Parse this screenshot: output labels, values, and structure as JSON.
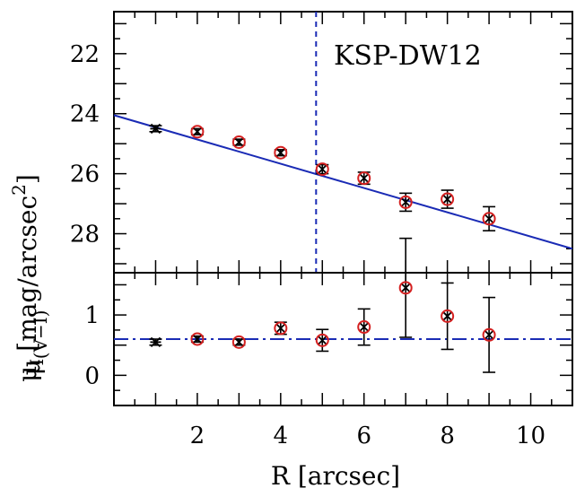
{
  "chart_data": [
    {
      "type": "scatter",
      "panel": "top",
      "annotation": "KSP-DW12",
      "xlim": [
        0,
        11
      ],
      "ylim": [
        29.3,
        20.6
      ],
      "y_inverted": true,
      "yticks": [
        22,
        24,
        26,
        28
      ],
      "ylabel_symbol": "μ",
      "ylabel_subscript": "I",
      "ylabel_units": "[mag/arcsec",
      "ylabel_units_sup": "2",
      "ylabel_units_end": "]",
      "points": [
        {
          "x": 1,
          "y": 24.5,
          "err": 0.1,
          "circled": false
        },
        {
          "x": 2,
          "y": 24.6,
          "err": 0.1,
          "circled": true
        },
        {
          "x": 3,
          "y": 24.95,
          "err": 0.1,
          "circled": true
        },
        {
          "x": 4,
          "y": 25.3,
          "err": 0.1,
          "circled": true
        },
        {
          "x": 5,
          "y": 25.85,
          "err": 0.15,
          "circled": true
        },
        {
          "x": 6,
          "y": 26.15,
          "err": 0.2,
          "circled": true
        },
        {
          "x": 7,
          "y": 26.95,
          "err": 0.3,
          "circled": true
        },
        {
          "x": 8,
          "y": 26.85,
          "err": 0.3,
          "circled": true
        },
        {
          "x": 9,
          "y": 27.5,
          "err": 0.4,
          "circled": true
        }
      ],
      "fit_line": {
        "x": [
          0,
          11
        ],
        "y": [
          24.05,
          28.5
        ],
        "color": "#1a2bb5"
      },
      "vline": {
        "x": 4.85,
        "style": "dashed",
        "color": "#1a2bb5"
      },
      "circle_color": "#d42020"
    },
    {
      "type": "scatter",
      "panel": "bottom",
      "xlim": [
        0,
        11
      ],
      "ylim": [
        -0.5,
        1.7
      ],
      "yticks": [
        0,
        1
      ],
      "ylabel_symbol": "μ",
      "ylabel_subscript": "(V−I)",
      "xticks": [
        2,
        4,
        6,
        8,
        10
      ],
      "xlabel": "R [arcsec]",
      "points": [
        {
          "x": 1,
          "y": 0.55,
          "err": 0.05,
          "circled": false
        },
        {
          "x": 2,
          "y": 0.6,
          "err": 0.05,
          "circled": true
        },
        {
          "x": 3,
          "y": 0.55,
          "err": 0.05,
          "circled": true
        },
        {
          "x": 4,
          "y": 0.78,
          "err": 0.1,
          "circled": true
        },
        {
          "x": 5,
          "y": 0.58,
          "err": 0.18,
          "circled": true
        },
        {
          "x": 6,
          "y": 0.8,
          "err": 0.3,
          "circled": true
        },
        {
          "x": 7,
          "y": 1.45,
          "err": 0.82,
          "circled": true
        },
        {
          "x": 8,
          "y": 0.98,
          "err": 0.55,
          "circled": true
        },
        {
          "x": 9,
          "y": 0.67,
          "err": 0.62,
          "circled": true
        }
      ],
      "hline": {
        "y": 0.6,
        "style": "dashdot",
        "color": "#1a2bb5"
      },
      "circle_color": "#d42020"
    }
  ]
}
